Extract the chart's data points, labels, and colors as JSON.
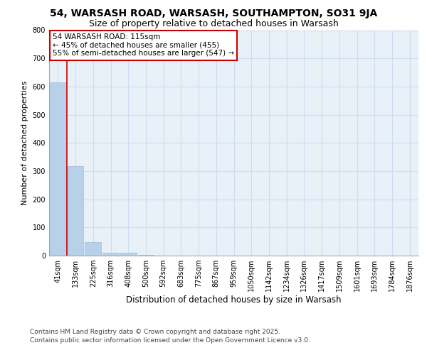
{
  "title_line1": "54, WARSASH ROAD, WARSASH, SOUTHAMPTON, SO31 9JA",
  "title_line2": "Size of property relative to detached houses in Warsash",
  "xlabel": "Distribution of detached houses by size in Warsash",
  "ylabel": "Number of detached properties",
  "bar_labels": [
    "41sqm",
    "133sqm",
    "225sqm",
    "316sqm",
    "408sqm",
    "500sqm",
    "592sqm",
    "683sqm",
    "775sqm",
    "867sqm",
    "959sqm",
    "1050sqm",
    "1142sqm",
    "1234sqm",
    "1326sqm",
    "1417sqm",
    "1509sqm",
    "1601sqm",
    "1693sqm",
    "1784sqm",
    "1876sqm"
  ],
  "bar_values": [
    615,
    318,
    48,
    11,
    11,
    3,
    0,
    0,
    0,
    0,
    0,
    0,
    0,
    0,
    0,
    0,
    0,
    0,
    0,
    0,
    0
  ],
  "bar_color": "#b8d0e8",
  "bar_edgecolor": "#a0bcd8",
  "grid_color": "#ccddf0",
  "background_color": "#ffffff",
  "axes_background": "#e8f0f8",
  "red_line_x": 1.0,
  "annotation_line1": "54 WARSASH ROAD: 115sqm",
  "annotation_line2": "← 45% of detached houses are smaller (455)",
  "annotation_line3": "55% of semi-detached houses are larger (547) →",
  "annotation_box_color": "#ffffff",
  "annotation_box_edgecolor": "#cc0000",
  "ylim": [
    0,
    800
  ],
  "yticks": [
    0,
    100,
    200,
    300,
    400,
    500,
    600,
    700,
    800
  ],
  "footer_line1": "Contains HM Land Registry data © Crown copyright and database right 2025.",
  "footer_line2": "Contains public sector information licensed under the Open Government Licence v3.0.",
  "title_fontsize": 10,
  "subtitle_fontsize": 9,
  "ylabel_fontsize": 8,
  "xlabel_fontsize": 8.5,
  "tick_fontsize": 7,
  "footer_fontsize": 6.5
}
